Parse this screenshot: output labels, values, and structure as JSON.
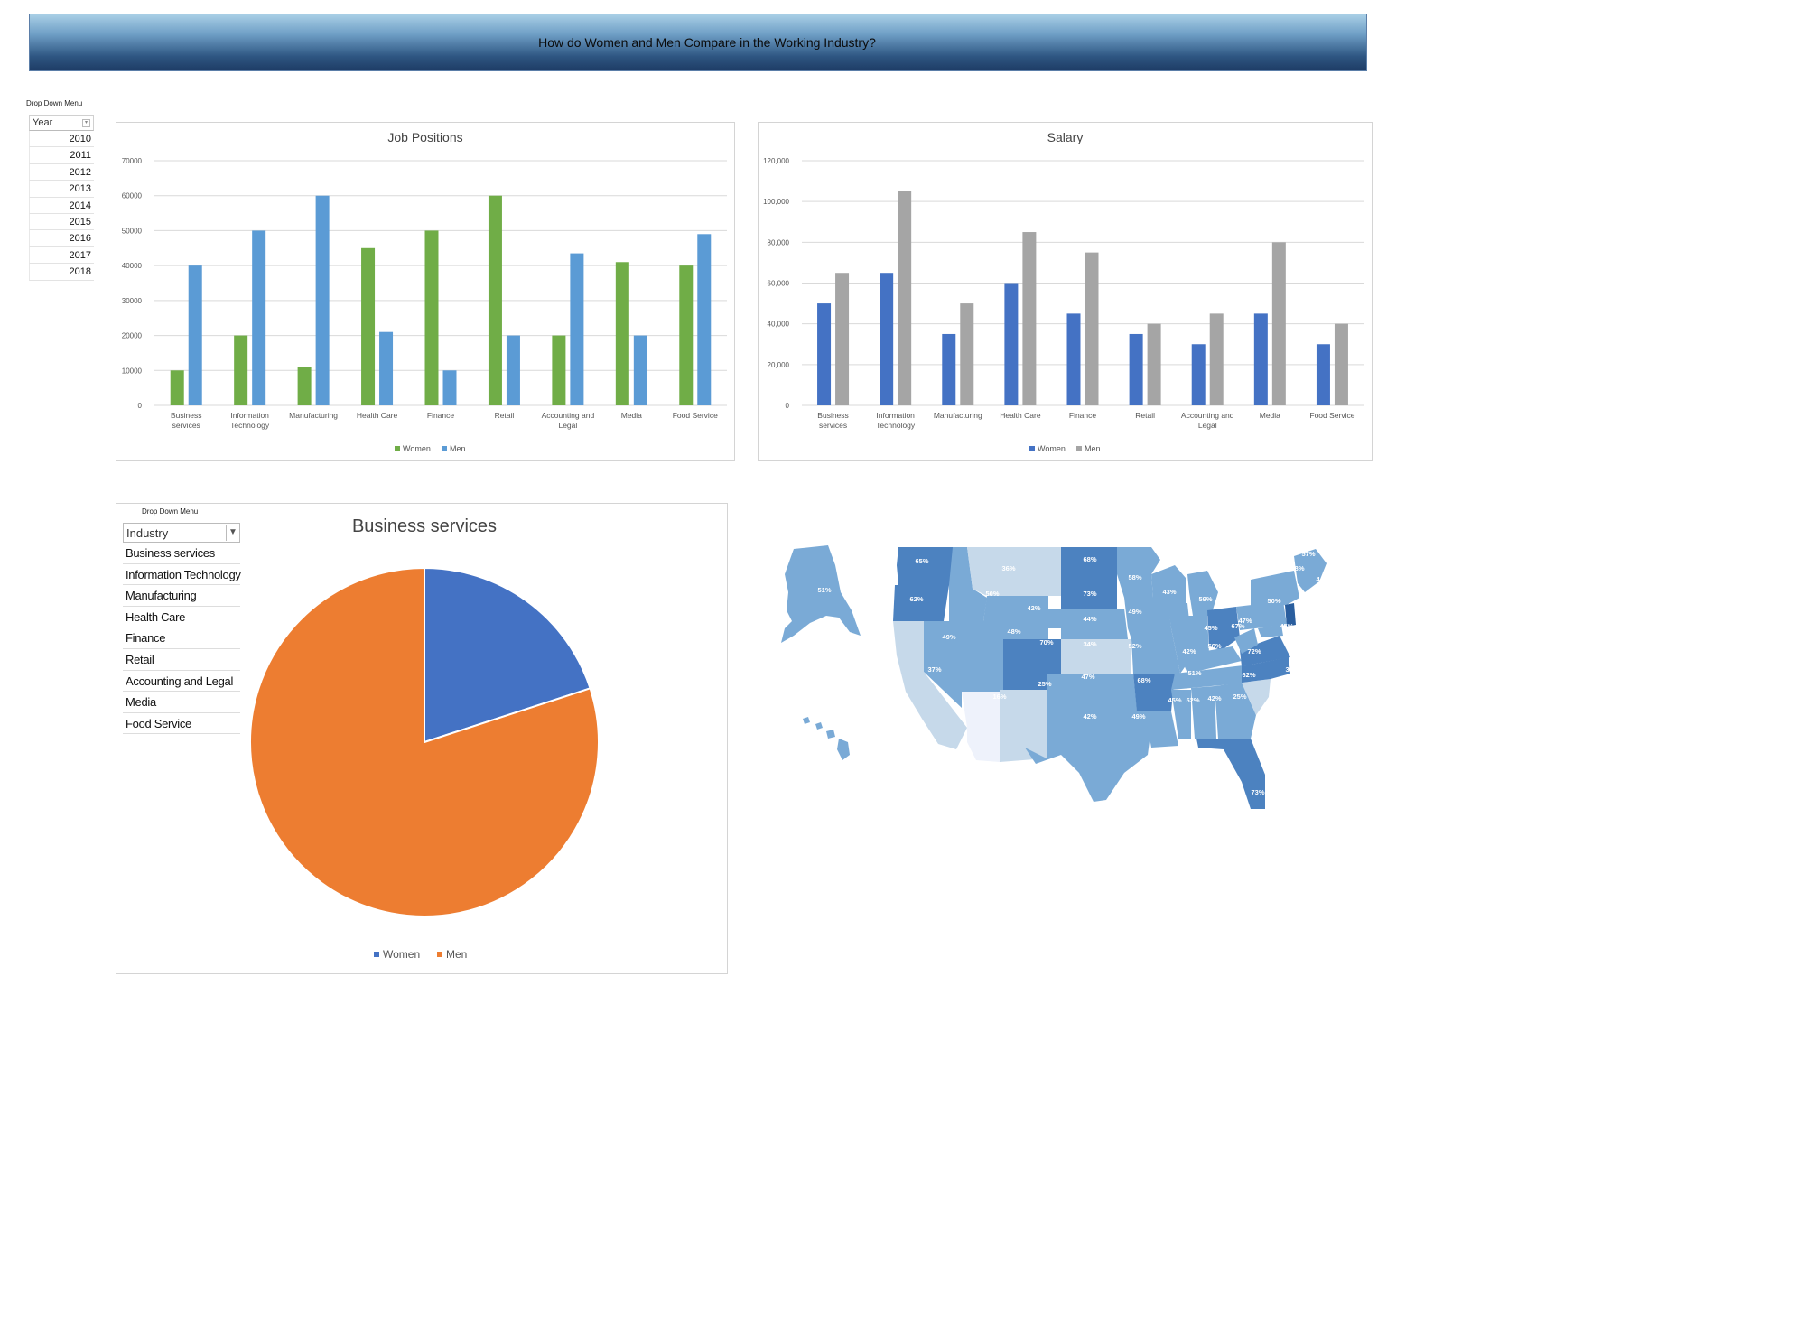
{
  "header": {
    "title": "How do Women and Men Compare in the Working Industry?"
  },
  "year_slicer": {
    "caption": "Drop Down Menu",
    "header": "Year",
    "items": [
      "2010",
      "2011",
      "2012",
      "2013",
      "2014",
      "2015",
      "2016",
      "2017",
      "2018"
    ]
  },
  "industry_slicer": {
    "caption": "Drop Down Menu",
    "header": "Industry",
    "items": [
      "Business services",
      "Information Technology",
      "Manufacturing",
      "Health Care",
      "Finance",
      "Retail",
      "Accounting and Legal",
      "Media",
      "Food Service"
    ]
  },
  "colors": {
    "women_jobs": "#70ad47",
    "men_jobs": "#5b9bd5",
    "women_salary": "#4472c4",
    "men_salary": "#a5a5a5",
    "pie_women": "#4472c4",
    "pie_men": "#ed7d31"
  },
  "chart_data": [
    {
      "type": "bar",
      "title": "Job Positions",
      "categories": [
        [
          "Business",
          "services"
        ],
        [
          "Information",
          "Technology"
        ],
        [
          "Manufacturing"
        ],
        [
          "Health Care"
        ],
        [
          "Finance"
        ],
        [
          "Retail"
        ],
        [
          "Accounting and",
          "Legal"
        ],
        [
          "Media"
        ],
        [
          "Food Service"
        ]
      ],
      "series": [
        {
          "name": "Women",
          "values": [
            10000,
            20000,
            11000,
            45000,
            50000,
            60000,
            20000,
            41000,
            40000
          ]
        },
        {
          "name": "Men",
          "values": [
            40000,
            50000,
            60000,
            21000,
            10000,
            20000,
            43500,
            20000,
            49000
          ]
        }
      ],
      "ylim": [
        0,
        70000
      ],
      "yticks": [
        "0",
        "10000",
        "20000",
        "30000",
        "40000",
        "50000",
        "60000",
        "70000"
      ],
      "grid": true,
      "legend": "bottom"
    },
    {
      "type": "bar",
      "title": "Salary",
      "categories": [
        [
          "Business",
          "services"
        ],
        [
          "Information",
          "Technology"
        ],
        [
          "Manufacturing"
        ],
        [
          "Health Care"
        ],
        [
          "Finance"
        ],
        [
          "Retail"
        ],
        [
          "Accounting and",
          "Legal"
        ],
        [
          "Media"
        ],
        [
          "Food Service"
        ]
      ],
      "series": [
        {
          "name": "Women",
          "values": [
            50000,
            65000,
            35000,
            60000,
            45000,
            35000,
            30000,
            45000,
            30000
          ]
        },
        {
          "name": "Men",
          "values": [
            65000,
            105000,
            50000,
            85000,
            75000,
            40000,
            45000,
            80000,
            40000
          ]
        }
      ],
      "ylim": [
        0,
        120000
      ],
      "yticks": [
        "0",
        "20,000",
        "40,000",
        "60,000",
        "80,000",
        "100,000",
        "120,000"
      ],
      "grid": true,
      "legend": "bottom"
    },
    {
      "type": "pie",
      "title": "Business services",
      "labels": [
        "Women",
        "Men"
      ],
      "values": [
        20,
        80
      ],
      "legend": "bottom"
    }
  ],
  "map_labels": [
    "65%",
    "36%",
    "68%",
    "58%",
    "51%",
    "62%",
    "50%",
    "73%",
    "43%",
    "59%",
    "50%",
    "44%",
    "57%",
    "48%",
    "42%",
    "49%",
    "44%",
    "48%",
    "47%",
    "45%",
    "67%",
    "45%",
    "48%",
    "40%",
    "49%",
    "70%",
    "34%",
    "52%",
    "42%",
    "56%",
    "72%",
    "62%",
    "83%",
    "56%",
    "46%",
    "30%",
    "37%",
    "47%",
    "51%",
    "62%",
    "25%",
    "16%",
    "25%",
    "68%",
    "45%",
    "52%",
    "42%",
    "42%",
    "49%",
    "55%",
    "73%"
  ]
}
